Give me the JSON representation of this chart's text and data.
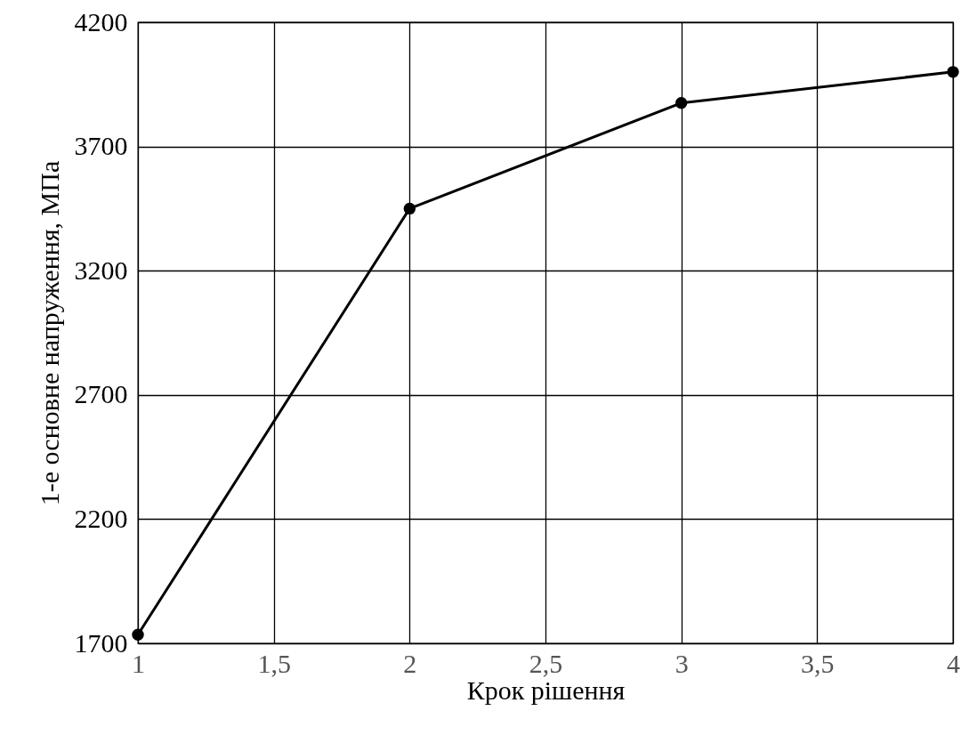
{
  "chart_data": {
    "type": "line",
    "xlabel": "Крок рішення",
    "ylabel": "1-е основне напруження, МПа",
    "x": [
      1,
      2,
      3,
      4
    ],
    "series": [
      {
        "color": "#000000",
        "values": [
          1735,
          3450,
          3875,
          4000
        ]
      }
    ],
    "xlim": [
      1,
      4
    ],
    "ylim": [
      1700,
      4200
    ],
    "xticks": [
      1,
      {
        "value": 1.5,
        "label": "1,5"
      },
      2,
      {
        "value": 2.5,
        "label": "2,5"
      },
      3,
      {
        "value": 3.5,
        "label": "3,5"
      },
      4
    ],
    "yticks": [
      1700,
      2200,
      2700,
      3200,
      3700,
      4200
    ],
    "grid": true,
    "marker": "circle",
    "line_style": "solid"
  }
}
